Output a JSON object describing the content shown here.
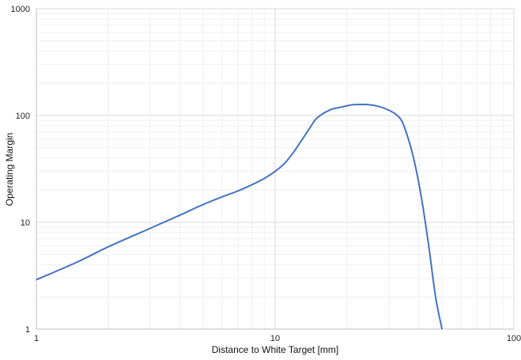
{
  "chart_data": {
    "type": "line",
    "xlabel": "Distance to White Target [mm]",
    "ylabel": "Operating Margin",
    "x_scale": "log",
    "y_scale": "log",
    "xlim": [
      1,
      100
    ],
    "ylim": [
      1,
      1000
    ],
    "x_ticks": [
      "1",
      "10",
      "100"
    ],
    "y_ticks": [
      "1",
      "10",
      "100",
      "1000"
    ],
    "grid": true,
    "colors": {
      "line": "#4472c4",
      "major_grid": "#d9d9d9",
      "minor_grid": "#efefef",
      "axis": "#bfbfbf"
    },
    "series": [
      {
        "x": [
          1,
          1.5,
          2,
          3,
          4,
          5,
          6,
          7,
          8,
          9,
          10,
          11,
          12,
          13,
          14,
          15,
          17,
          19,
          21,
          23,
          25,
          27,
          30,
          33,
          35,
          38,
          41,
          44,
          47,
          50
        ],
        "y": [
          2.9,
          4.3,
          5.9,
          8.8,
          11.7,
          14.7,
          17.3,
          19.7,
          22.5,
          25.7,
          30,
          36,
          46,
          60,
          77,
          95,
          113,
          120,
          126,
          127,
          126,
          122,
          112,
          97,
          75,
          40,
          17,
          6,
          2,
          1
        ]
      }
    ]
  }
}
